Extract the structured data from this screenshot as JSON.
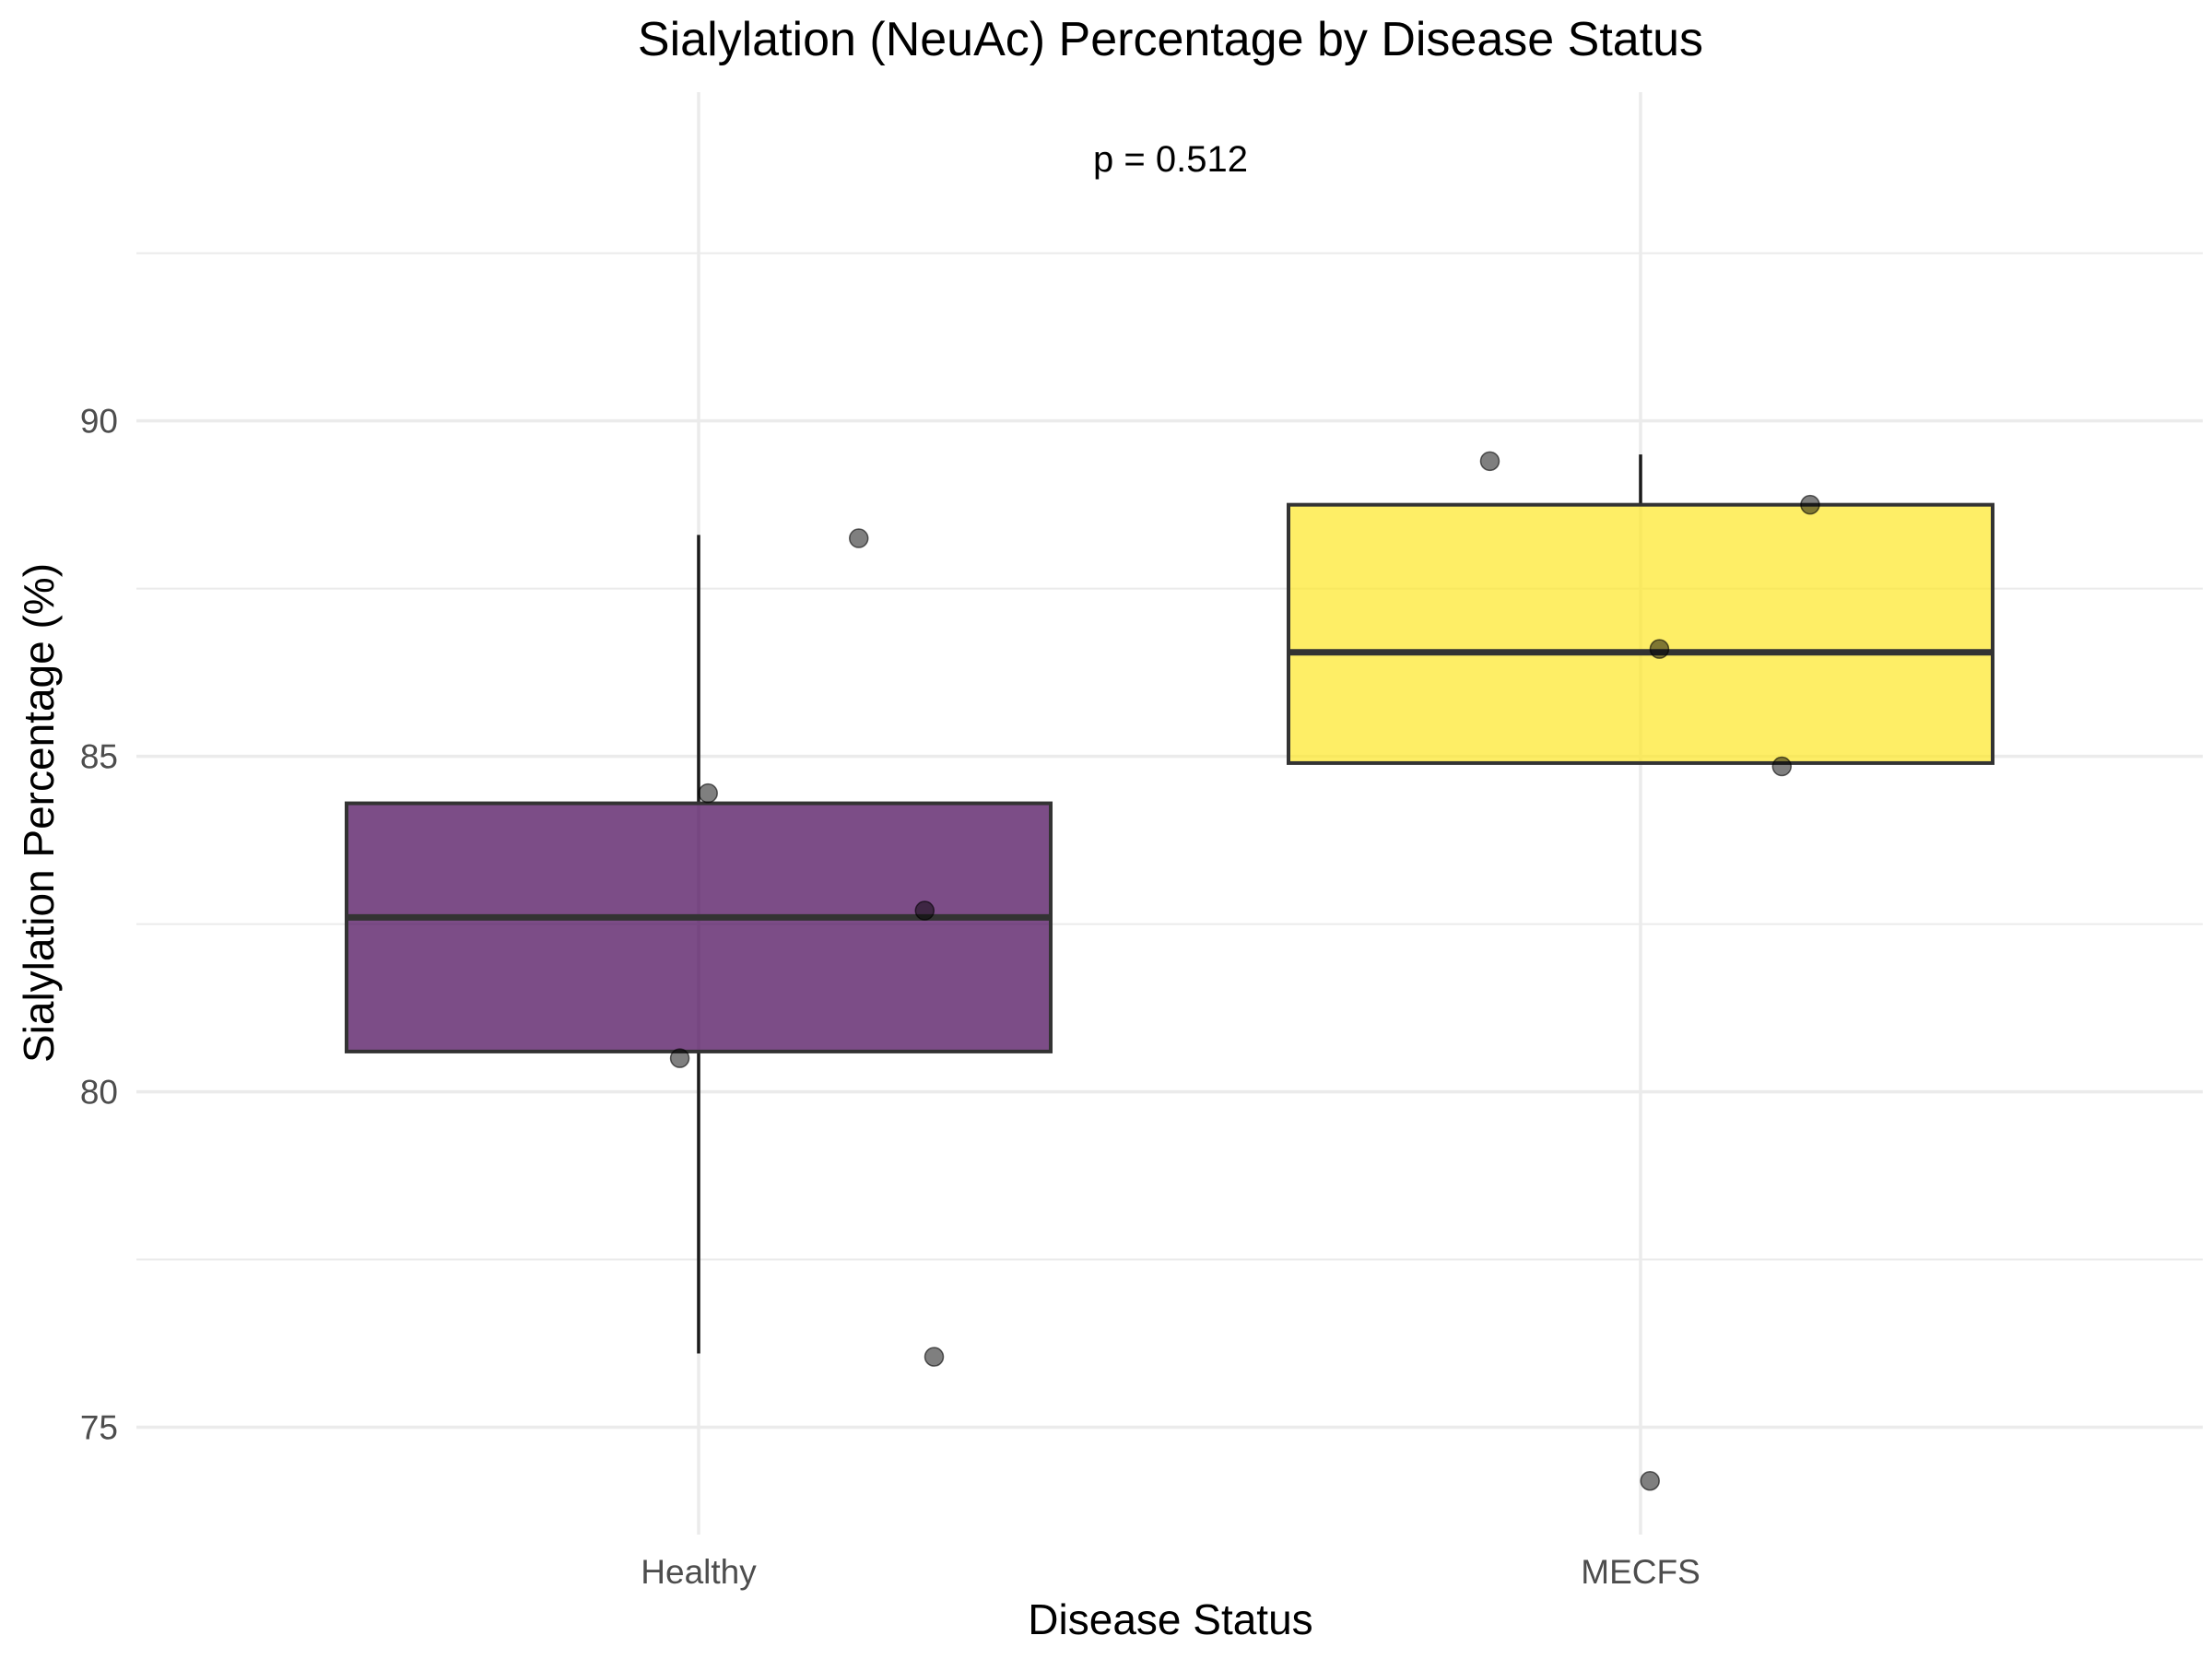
{
  "chart_data": {
    "type": "box",
    "title": "Sialylation (NeuAc) Percentage by Disease Status",
    "xlabel": "Disease Status",
    "ylabel": "Sialylation Percentage (%)",
    "categories": [
      "Healthy",
      "MECFS"
    ],
    "ylim": [
      73.4,
      94.9
    ],
    "yticks": [
      75,
      80,
      85,
      90
    ],
    "grid": true,
    "legend": "none",
    "annotation": "p = 0.512",
    "boxes": [
      {
        "name": "Healthy",
        "color": "#440154",
        "min": 76.1,
        "q1": 80.6,
        "median": 82.6,
        "q3": 84.3,
        "max": 88.3
      },
      {
        "name": "MECFS",
        "color": "#FDE725",
        "min": 84.9,
        "q1": 84.9,
        "median": 86.55,
        "q3": 88.75,
        "max": 89.5
      }
    ],
    "points": [
      {
        "category": "Healthy",
        "jitter": 0.01,
        "y": 84.45
      },
      {
        "category": "Healthy",
        "jitter": 0.17,
        "y": 88.25
      },
      {
        "category": "Healthy",
        "jitter": 0.24,
        "y": 82.7
      },
      {
        "category": "Healthy",
        "jitter": -0.02,
        "y": 80.5
      },
      {
        "category": "Healthy",
        "jitter": 0.25,
        "y": 76.05
      },
      {
        "category": "MECFS",
        "jitter": -0.16,
        "y": 89.4
      },
      {
        "category": "MECFS",
        "jitter": 0.18,
        "y": 88.75
      },
      {
        "category": "MECFS",
        "jitter": 0.02,
        "y": 86.6
      },
      {
        "category": "MECFS",
        "jitter": 0.15,
        "y": 84.85
      },
      {
        "category": "MECFS",
        "jitter": 0.01,
        "y": 74.2
      }
    ]
  }
}
